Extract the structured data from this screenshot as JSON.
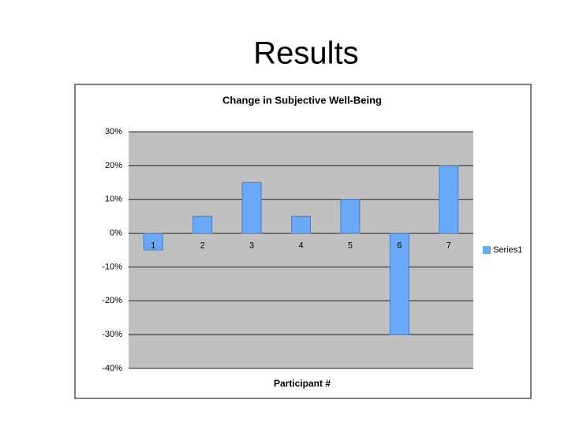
{
  "slide_title": "Results",
  "chart_data": {
    "type": "bar",
    "title": "Change in Subjective Well-Being",
    "x_label": "Participant #",
    "categories": [
      "1",
      "2",
      "3",
      "4",
      "5",
      "6",
      "7"
    ],
    "series": [
      {
        "name": "Series1",
        "color": "#6aa9f7",
        "values": [
          -5,
          5,
          15,
          5,
          10,
          -30,
          20
        ]
      }
    ],
    "ylim": [
      -40,
      30
    ],
    "yticks": [
      {
        "value": -40,
        "label": "-40%"
      },
      {
        "value": -30,
        "label": "-30%"
      },
      {
        "value": -20,
        "label": "-20%"
      },
      {
        "value": -10,
        "label": "-10%"
      },
      {
        "value": 0,
        "label": "0%"
      },
      {
        "value": 10,
        "label": "10%"
      },
      {
        "value": 20,
        "label": "20%"
      },
      {
        "value": 30,
        "label": "30%"
      }
    ],
    "grid": true,
    "legend": "right"
  }
}
